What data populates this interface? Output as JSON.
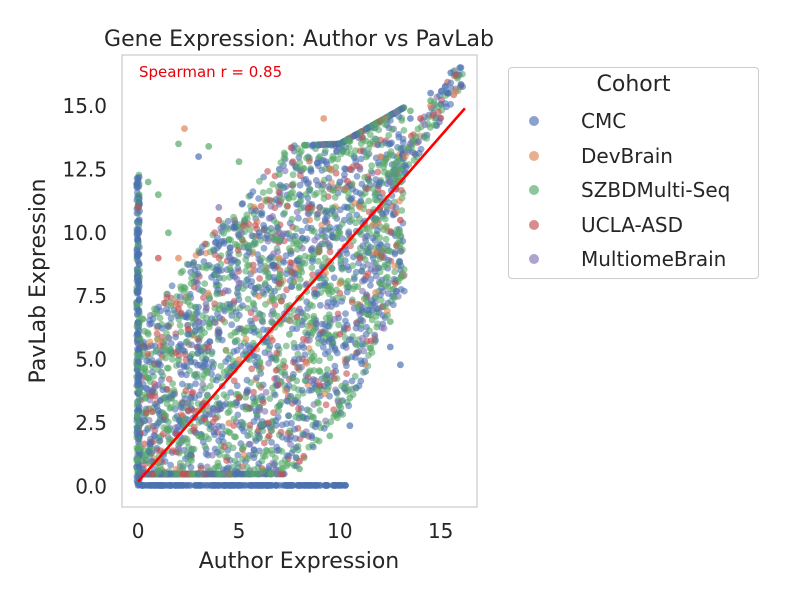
{
  "chart_data": {
    "type": "scatter",
    "title": "Gene Expression: Author vs PavLab",
    "xlabel": "Author Expression",
    "ylabel": "PavLab Expression",
    "xlim": [
      -0.8,
      16.8
    ],
    "ylim": [
      -0.8,
      17.0
    ],
    "xticks": [
      "0",
      "5",
      "10",
      "15"
    ],
    "yticks": [
      "0.0",
      "2.5",
      "5.0",
      "7.5",
      "10.0",
      "12.5",
      "15.0"
    ],
    "grid": false,
    "annotation": {
      "text": "Spearman r = 0.85",
      "color": "#e8000b"
    },
    "fit_line": {
      "x": [
        0.0,
        16.2
      ],
      "y": [
        0.2,
        14.9
      ],
      "color": "#ff0000"
    },
    "legend": {
      "title": "Cohort",
      "position": "outside-upper-right"
    },
    "series": [
      {
        "name": "CMC",
        "color": "#4c72b0",
        "points": [
          [
            0.0,
            0.05
          ],
          [
            2.0,
            0.05
          ],
          [
            4.0,
            0.05
          ],
          [
            6.0,
            0.05
          ],
          [
            8.0,
            0.05
          ],
          [
            10.0,
            0.05
          ],
          [
            0.0,
            2.0
          ],
          [
            0.0,
            4.0
          ],
          [
            0.0,
            6.0
          ],
          [
            0.0,
            8.0
          ],
          [
            0.0,
            10.0
          ],
          [
            0.0,
            12.0
          ],
          [
            1.0,
            3.0
          ],
          [
            2.5,
            6.0
          ],
          [
            4.0,
            8.5
          ],
          [
            6.0,
            10.0
          ],
          [
            8.0,
            11.5
          ],
          [
            10.0,
            12.0
          ],
          [
            12.0,
            12.0
          ],
          [
            12.5,
            5.5
          ],
          [
            13.0,
            4.8
          ],
          [
            10.5,
            2.4
          ],
          [
            12.5,
            13.5
          ],
          [
            13.5,
            14.5
          ],
          [
            14.5,
            15.5
          ],
          [
            15.5,
            16.3
          ],
          [
            16.0,
            16.5
          ],
          [
            3.0,
            13.0
          ],
          [
            7.0,
            12.5
          ],
          [
            9.0,
            6.0
          ]
        ]
      },
      {
        "name": "DevBrain",
        "color": "#dd8452",
        "points": [
          [
            2.3,
            14.1
          ],
          [
            9.2,
            14.5
          ],
          [
            5.0,
            5.0
          ],
          [
            7.0,
            9.0
          ],
          [
            3.0,
            3.0
          ],
          [
            11.0,
            11.0
          ],
          [
            13.0,
            12.0
          ],
          [
            14.5,
            15.0
          ],
          [
            1.0,
            1.0
          ],
          [
            6.0,
            7.5
          ],
          [
            8.5,
            10.5
          ],
          [
            4.5,
            2.5
          ],
          [
            10.0,
            8.0
          ],
          [
            12.0,
            13.0
          ],
          [
            2.0,
            9.0
          ]
        ]
      },
      {
        "name": "SZBDMulti-Seq",
        "color": "#55a868",
        "points": [
          [
            0.5,
            12.0
          ],
          [
            1.0,
            11.5
          ],
          [
            2.0,
            13.5
          ],
          [
            3.5,
            13.4
          ],
          [
            5.0,
            12.8
          ],
          [
            7.0,
            12.3
          ],
          [
            9.0,
            13.0
          ],
          [
            10.5,
            13.6
          ],
          [
            11.5,
            13.5
          ],
          [
            12.0,
            8.0
          ],
          [
            12.5,
            6.5
          ],
          [
            10.5,
            3.5
          ],
          [
            9.5,
            2.0
          ],
          [
            8.0,
            0.7
          ],
          [
            4.0,
            0.8
          ],
          [
            1.0,
            0.6
          ],
          [
            0.0,
            1.5
          ],
          [
            2.0,
            5.0
          ],
          [
            4.0,
            7.0
          ],
          [
            6.0,
            4.0
          ],
          [
            8.0,
            9.0
          ],
          [
            13.5,
            14.8
          ],
          [
            14.5,
            15.2
          ],
          [
            13.0,
            12.0
          ],
          [
            10.0,
            10.0
          ],
          [
            1.5,
            10.0
          ],
          [
            3.0,
            2.0
          ],
          [
            7.5,
            6.0
          ],
          [
            5.5,
            9.5
          ],
          [
            9.0,
            11.0
          ]
        ]
      },
      {
        "name": "UCLA-ASD",
        "color": "#c44e52",
        "points": [
          [
            0.0,
            11.0
          ],
          [
            1.0,
            9.0
          ],
          [
            2.0,
            7.0
          ],
          [
            3.5,
            5.5
          ],
          [
            5.0,
            3.5
          ],
          [
            6.5,
            2.0
          ],
          [
            8.0,
            1.0
          ],
          [
            9.0,
            4.0
          ],
          [
            10.0,
            6.0
          ],
          [
            11.0,
            9.0
          ],
          [
            12.0,
            11.0
          ],
          [
            13.0,
            10.5
          ],
          [
            14.0,
            14.5
          ],
          [
            7.0,
            8.0
          ],
          [
            4.0,
            10.5
          ],
          [
            2.5,
            3.0
          ],
          [
            8.5,
            11.0
          ],
          [
            10.5,
            12.5
          ]
        ]
      },
      {
        "name": "MultiomeBrain",
        "color": "#8172b3",
        "points": [
          [
            1.0,
            4.0
          ],
          [
            3.0,
            6.5
          ],
          [
            5.0,
            8.0
          ],
          [
            7.0,
            10.0
          ],
          [
            9.0,
            11.0
          ],
          [
            11.0,
            12.5
          ],
          [
            12.5,
            12.0
          ],
          [
            2.0,
            1.5
          ],
          [
            6.0,
            3.0
          ],
          [
            8.0,
            7.0
          ],
          [
            13.5,
            13.5
          ],
          [
            4.0,
            11.0
          ]
        ]
      }
    ]
  }
}
